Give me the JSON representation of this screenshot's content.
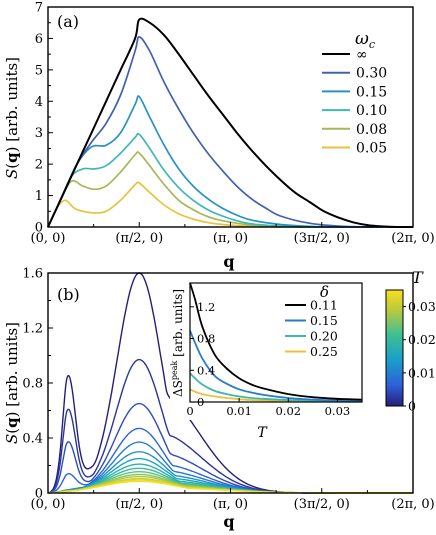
{
  "chart_data": [
    {
      "type": "line",
      "panel_label": "(a)",
      "xlabel": "q",
      "ylabel": "S(q) [arb. units]",
      "ylim": [
        0,
        7
      ],
      "yticks": [
        "0",
        "1",
        "2",
        "3",
        "4",
        "5",
        "6",
        "7"
      ],
      "xtick_labels": [
        "(0, 0)",
        "(π/2, 0)",
        "(π, 0)",
        "(3π/2, 0)",
        "(2π, 0)"
      ],
      "legend_title": "ω",
      "legend_title_sub": "c",
      "legend_placement": "top-right",
      "series": [
        {
          "name": "∞",
          "color": "#000000",
          "x": [
            0,
            0.25,
            0.5,
            0.75,
            1.0,
            1.25,
            1.5,
            1.57,
            1.75,
            2.0,
            2.25,
            2.5,
            2.75,
            3.0,
            3.25,
            3.5,
            3.75,
            4.0,
            4.25,
            4.5,
            4.75,
            5.0,
            5.25,
            5.5,
            5.75,
            6.0,
            6.283
          ],
          "y": [
            0,
            1.0,
            2.0,
            3.0,
            4.0,
            5.0,
            6.0,
            6.6,
            6.5,
            6.1,
            5.5,
            4.85,
            4.2,
            3.6,
            3.0,
            2.45,
            1.95,
            1.5,
            1.1,
            0.8,
            0.5,
            0.3,
            0.15,
            0.06,
            0.02,
            0.0,
            0.0
          ]
        },
        {
          "name": "0.30",
          "color": "#4060b0",
          "x": [
            0,
            0.25,
            0.5,
            0.75,
            1.0,
            1.25,
            1.5,
            1.57,
            1.75,
            2.0,
            2.25,
            2.5,
            2.75,
            3.0,
            3.25,
            3.5,
            3.75,
            4.0,
            4.5,
            5.0,
            5.5,
            6.0,
            6.283
          ],
          "y": [
            0,
            1.0,
            2.0,
            2.7,
            3.3,
            4.2,
            5.6,
            6.05,
            5.6,
            4.6,
            3.75,
            3.0,
            2.35,
            1.8,
            1.3,
            0.9,
            0.6,
            0.35,
            0.12,
            0.03,
            0.0,
            0.0,
            0.0
          ]
        },
        {
          "name": "0.15",
          "color": "#2a92c2",
          "x": [
            0,
            0.25,
            0.5,
            0.75,
            1.0,
            1.25,
            1.5,
            1.57,
            1.75,
            2.0,
            2.25,
            2.5,
            2.75,
            3.0,
            3.25,
            3.5,
            4.0,
            4.5,
            5.0,
            5.5,
            6.283
          ],
          "y": [
            0,
            1.0,
            2.0,
            2.55,
            2.6,
            3.0,
            3.9,
            4.15,
            3.5,
            2.6,
            1.85,
            1.3,
            0.9,
            0.6,
            0.38,
            0.22,
            0.08,
            0.02,
            0.0,
            0.0,
            0.0
          ]
        },
        {
          "name": "0.10",
          "color": "#3fb8b0",
          "x": [
            0,
            0.2,
            0.4,
            0.6,
            0.8,
            1.0,
            1.25,
            1.5,
            1.57,
            1.75,
            2.0,
            2.25,
            2.5,
            2.75,
            3.0,
            3.25,
            3.5,
            4.0,
            4.5,
            5.0,
            6.283
          ],
          "y": [
            0,
            0.8,
            1.6,
            1.85,
            1.85,
            1.95,
            2.35,
            2.85,
            2.95,
            2.5,
            1.8,
            1.25,
            0.85,
            0.55,
            0.35,
            0.2,
            0.1,
            0.03,
            0.0,
            0.0,
            0.0
          ]
        },
        {
          "name": "0.08",
          "color": "#a7b85a",
          "x": [
            0,
            0.2,
            0.4,
            0.6,
            0.8,
            1.0,
            1.25,
            1.5,
            1.57,
            1.75,
            2.0,
            2.25,
            2.5,
            2.75,
            3.0,
            3.5,
            4.0,
            4.5,
            6.283
          ],
          "y": [
            0,
            0.8,
            1.45,
            1.3,
            1.2,
            1.3,
            1.75,
            2.3,
            2.35,
            1.95,
            1.35,
            0.85,
            0.55,
            0.33,
            0.2,
            0.06,
            0.02,
            0.0,
            0.0
          ]
        },
        {
          "name": "0.05",
          "color": "#e8c33a",
          "x": [
            0,
            0.15,
            0.3,
            0.45,
            0.6,
            0.8,
            1.0,
            1.25,
            1.5,
            1.57,
            1.75,
            2.0,
            2.25,
            2.5,
            2.75,
            3.0,
            3.5,
            4.0,
            6.283
          ],
          "y": [
            0,
            0.6,
            0.85,
            0.6,
            0.5,
            0.45,
            0.5,
            0.85,
            1.35,
            1.4,
            1.1,
            0.7,
            0.42,
            0.25,
            0.14,
            0.08,
            0.02,
            0.0,
            0.0
          ]
        }
      ]
    },
    {
      "type": "line",
      "panel_label": "(b)",
      "xlabel": "q",
      "ylabel": "S(q) [arb. units]",
      "ylim": [
        0,
        1.6
      ],
      "yticks": [
        "0",
        "0.4",
        "0.8",
        "1.2",
        "1.6"
      ],
      "xtick_labels": [
        "(0, 0)",
        "(π/2, 0)",
        "(π, 0)",
        "(3π/2, 0)",
        "(2π, 0)"
      ],
      "colorbar": {
        "label": "T",
        "range": [
          0,
          0.035
        ],
        "ticks": [
          "0",
          "0.01",
          "0.02",
          "0.03"
        ],
        "colors": [
          "#271e78",
          "#2f5fd8",
          "#1aa0c8",
          "#40c090",
          "#b8c840",
          "#f8e020"
        ]
      },
      "series_family": {
        "description_T": [
          0.0,
          0.0025,
          0.005,
          0.0075,
          0.01,
          0.0125,
          0.015,
          0.0175,
          0.02,
          0.0225,
          0.025,
          0.0275,
          0.03,
          0.0325,
          0.035
        ],
        "peak_heights": [
          1.6,
          0.97,
          0.65,
          0.47,
          0.37,
          0.3,
          0.25,
          0.21,
          0.18,
          0.155,
          0.135,
          0.12,
          0.105,
          0.095,
          0.085
        ],
        "shoulder_height_T0": 0.79
      },
      "inset": {
        "xlabel": "T",
        "ylabel": "ΔS",
        "ylabel_sup": "peak",
        "ylabel_units": "[arb. units]",
        "xlim": [
          0,
          0.035
        ],
        "ylim": [
          0,
          1.5
        ],
        "xticks": [
          "0",
          "0.01",
          "0.02",
          "0.03"
        ],
        "yticks": [
          "0",
          "0.4",
          "0.8",
          "1.2"
        ],
        "legend_title": "δ",
        "legend_placement": "top-right",
        "series": [
          {
            "name": "0.11",
            "color": "#000000",
            "x": [
              0.0,
              0.001,
              0.0025,
              0.005,
              0.0075,
              0.01,
              0.0125,
              0.015,
              0.02,
              0.025,
              0.03,
              0.035
            ],
            "y": [
              1.5,
              1.3,
              0.95,
              0.6,
              0.42,
              0.3,
              0.22,
              0.17,
              0.1,
              0.06,
              0.04,
              0.03
            ]
          },
          {
            "name": "0.15",
            "color": "#2a7ac8",
            "x": [
              0.0,
              0.001,
              0.0025,
              0.005,
              0.0075,
              0.01,
              0.0125,
              0.015,
              0.02,
              0.025,
              0.03,
              0.035
            ],
            "y": [
              0.9,
              0.75,
              0.55,
              0.33,
              0.23,
              0.16,
              0.12,
              0.09,
              0.05,
              0.03,
              0.02,
              0.015
            ]
          },
          {
            "name": "0.20",
            "color": "#3fb8b0",
            "x": [
              0.0,
              0.001,
              0.0025,
              0.005,
              0.0075,
              0.01,
              0.0125,
              0.015,
              0.02,
              0.025,
              0.03,
              0.035
            ],
            "y": [
              0.36,
              0.3,
              0.22,
              0.14,
              0.1,
              0.07,
              0.05,
              0.04,
              0.025,
              0.015,
              0.01,
              0.008
            ]
          },
          {
            "name": "0.25",
            "color": "#e8c33a",
            "x": [
              0.0,
              0.001,
              0.0025,
              0.005,
              0.0075,
              0.01,
              0.0125,
              0.015,
              0.02,
              0.025,
              0.03,
              0.035
            ],
            "y": [
              0.16,
              0.13,
              0.1,
              0.07,
              0.05,
              0.035,
              0.025,
              0.02,
              0.012,
              0.008,
              0.005,
              0.004
            ]
          }
        ]
      }
    }
  ]
}
